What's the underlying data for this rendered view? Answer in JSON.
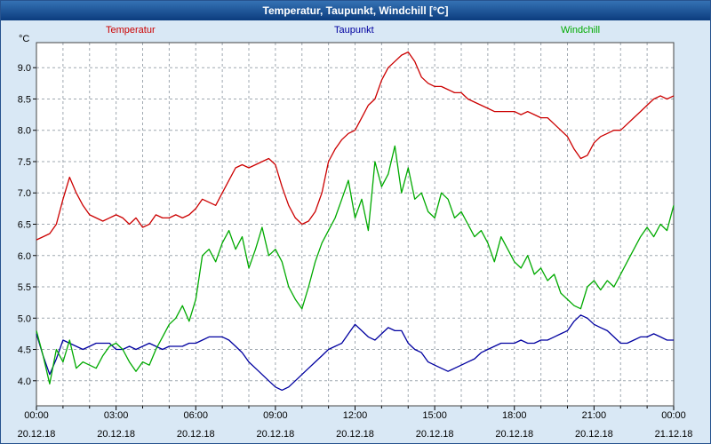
{
  "window": {
    "title": "Temperatur, Taupunkt, Windchill [°C]"
  },
  "chart_data": {
    "type": "line",
    "title": "Temperatur, Taupunkt, Windchill [°C]",
    "ylabel": "°C",
    "xlabel": "",
    "ylim": [
      3.6,
      9.4
    ],
    "y_ticks": [
      4.0,
      4.5,
      5.0,
      5.5,
      6.0,
      6.5,
      7.0,
      7.5,
      8.0,
      8.5,
      9.0
    ],
    "x_step_hours": 0.25,
    "x_range_hours": [
      0,
      24
    ],
    "grid": {
      "vertical_every_hours": 1,
      "horizontal_every_degC": 0.5,
      "style": "dashed",
      "color": "#9fa8b0"
    },
    "legend_position": "top",
    "x_ticks": [
      {
        "hour": 0,
        "time": "00:00",
        "date": "20.12.18"
      },
      {
        "hour": 3,
        "time": "03:00",
        "date": "20.12.18"
      },
      {
        "hour": 6,
        "time": "06:00",
        "date": "20.12.18"
      },
      {
        "hour": 9,
        "time": "09:00",
        "date": "20.12.18"
      },
      {
        "hour": 12,
        "time": "12:00",
        "date": "20.12.18"
      },
      {
        "hour": 15,
        "time": "15:00",
        "date": "20.12.18"
      },
      {
        "hour": 18,
        "time": "18:00",
        "date": "20.12.18"
      },
      {
        "hour": 21,
        "time": "21:00",
        "date": "20.12.18"
      },
      {
        "hour": 24,
        "time": "00:00",
        "date": "21.12.18"
      }
    ],
    "series": [
      {
        "name": "Temperatur",
        "color": "#cc0000",
        "values": [
          6.25,
          6.3,
          6.35,
          6.5,
          6.9,
          7.25,
          7.0,
          6.8,
          6.65,
          6.6,
          6.55,
          6.6,
          6.65,
          6.6,
          6.5,
          6.6,
          6.45,
          6.5,
          6.65,
          6.6,
          6.6,
          6.65,
          6.6,
          6.65,
          6.75,
          6.9,
          6.85,
          6.8,
          7.0,
          7.2,
          7.4,
          7.45,
          7.4,
          7.45,
          7.5,
          7.55,
          7.45,
          7.1,
          6.8,
          6.6,
          6.5,
          6.55,
          6.7,
          7.0,
          7.5,
          7.7,
          7.85,
          7.95,
          8.0,
          8.2,
          8.4,
          8.5,
          8.8,
          9.0,
          9.1,
          9.2,
          9.25,
          9.1,
          8.85,
          8.75,
          8.7,
          8.7,
          8.65,
          8.6,
          8.6,
          8.5,
          8.45,
          8.4,
          8.35,
          8.3,
          8.3,
          8.3,
          8.3,
          8.25,
          8.3,
          8.25,
          8.2,
          8.2,
          8.1,
          8.0,
          7.9,
          7.7,
          7.55,
          7.6,
          7.8,
          7.9,
          7.95,
          8.0,
          8.0,
          8.1,
          8.2,
          8.3,
          8.4,
          8.5,
          8.55,
          8.5,
          8.55
        ]
      },
      {
        "name": "Taupunkt",
        "color": "#0000a0",
        "values": [
          4.75,
          4.4,
          4.1,
          4.35,
          4.65,
          4.6,
          4.55,
          4.5,
          4.55,
          4.6,
          4.6,
          4.6,
          4.5,
          4.5,
          4.55,
          4.5,
          4.55,
          4.6,
          4.55,
          4.5,
          4.55,
          4.55,
          4.55,
          4.6,
          4.6,
          4.65,
          4.7,
          4.7,
          4.7,
          4.65,
          4.55,
          4.45,
          4.3,
          4.2,
          4.1,
          4.0,
          3.9,
          3.85,
          3.9,
          4.0,
          4.1,
          4.2,
          4.3,
          4.4,
          4.5,
          4.55,
          4.6,
          4.75,
          4.9,
          4.8,
          4.7,
          4.65,
          4.75,
          4.85,
          4.8,
          4.8,
          4.6,
          4.5,
          4.45,
          4.3,
          4.25,
          4.2,
          4.15,
          4.2,
          4.25,
          4.3,
          4.35,
          4.45,
          4.5,
          4.55,
          4.6,
          4.6,
          4.6,
          4.65,
          4.6,
          4.6,
          4.65,
          4.65,
          4.7,
          4.75,
          4.8,
          4.95,
          5.05,
          5.0,
          4.9,
          4.85,
          4.8,
          4.7,
          4.6,
          4.6,
          4.65,
          4.7,
          4.7,
          4.75,
          4.7,
          4.65,
          4.65
        ]
      },
      {
        "name": "Windchill",
        "color": "#00aa00",
        "values": [
          4.8,
          4.4,
          3.95,
          4.5,
          4.3,
          4.65,
          4.2,
          4.3,
          4.25,
          4.2,
          4.4,
          4.55,
          4.6,
          4.5,
          4.3,
          4.15,
          4.3,
          4.25,
          4.5,
          4.7,
          4.9,
          5.0,
          5.2,
          4.95,
          5.3,
          6.0,
          6.1,
          5.9,
          6.2,
          6.4,
          6.1,
          6.3,
          5.8,
          6.1,
          6.45,
          6.0,
          6.1,
          5.9,
          5.5,
          5.3,
          5.15,
          5.5,
          5.9,
          6.2,
          6.4,
          6.6,
          6.9,
          7.2,
          6.6,
          6.9,
          6.4,
          7.5,
          7.1,
          7.3,
          7.75,
          7.0,
          7.4,
          6.9,
          7.0,
          6.7,
          6.6,
          7.0,
          6.9,
          6.6,
          6.7,
          6.5,
          6.3,
          6.4,
          6.2,
          5.9,
          6.3,
          6.1,
          5.9,
          5.8,
          6.0,
          5.7,
          5.8,
          5.6,
          5.7,
          5.4,
          5.3,
          5.2,
          5.15,
          5.5,
          5.6,
          5.45,
          5.6,
          5.5,
          5.7,
          5.9,
          6.1,
          6.3,
          6.45,
          6.3,
          6.5,
          6.4,
          6.8
        ]
      }
    ]
  }
}
